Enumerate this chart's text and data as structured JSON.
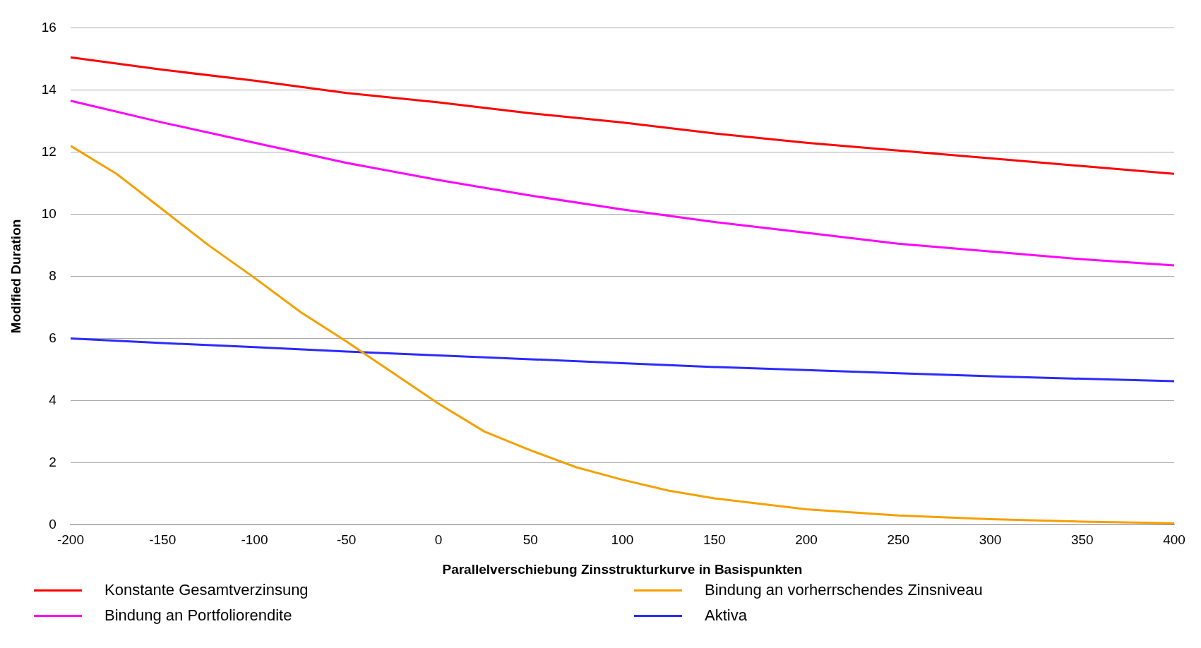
{
  "chart_data": {
    "type": "line",
    "xlabel": "Parallelverschiebung Zinsstrukturkurve in Basispunkten",
    "ylabel": "Modified Duration",
    "xlim": [
      -200,
      400
    ],
    "xticks": [
      -200,
      -150,
      -100,
      -50,
      0,
      50,
      100,
      150,
      200,
      250,
      300,
      350,
      400
    ],
    "ylim": [
      0,
      16
    ],
    "yticks": [
      0,
      2,
      4,
      6,
      8,
      10,
      12,
      14,
      16
    ],
    "grid": "y",
    "legend": "bottom",
    "marker": "none",
    "line_style": "solid",
    "series": [
      {
        "name": "Konstante Gesamtverzinsung",
        "color": "#ff0000",
        "x": [
          -200,
          -150,
          -100,
          -50,
          0,
          50,
          100,
          150,
          200,
          250,
          300,
          350,
          400
        ],
        "values": [
          15.05,
          14.65,
          14.3,
          13.9,
          13.6,
          13.25,
          12.95,
          12.6,
          12.3,
          12.05,
          11.8,
          11.55,
          11.3
        ]
      },
      {
        "name": "Bindung an Portfoliorendite",
        "color": "#ff00ff",
        "x": [
          -200,
          -150,
          -100,
          -50,
          0,
          50,
          100,
          150,
          200,
          250,
          300,
          350,
          400
        ],
        "values": [
          13.65,
          12.95,
          12.3,
          11.65,
          11.1,
          10.6,
          10.15,
          9.75,
          9.4,
          9.05,
          8.8,
          8.55,
          8.35
        ]
      },
      {
        "name": "Bindung an vorherrschendes Zinsniveau",
        "color": "#f5a000",
        "x": [
          -200,
          -175,
          -150,
          -125,
          -100,
          -75,
          -50,
          -25,
          0,
          25,
          50,
          75,
          100,
          125,
          150,
          200,
          250,
          300,
          350,
          400
        ],
        "values": [
          12.2,
          11.3,
          10.15,
          9.0,
          7.95,
          6.85,
          5.9,
          4.9,
          3.9,
          3.0,
          2.4,
          1.85,
          1.45,
          1.1,
          0.85,
          0.5,
          0.3,
          0.18,
          0.1,
          0.05
        ]
      },
      {
        "name": "Aktiva",
        "color": "#2a2aff",
        "x": [
          -200,
          -150,
          -100,
          -50,
          0,
          50,
          100,
          150,
          200,
          250,
          300,
          350,
          400
        ],
        "values": [
          6.0,
          5.85,
          5.72,
          5.58,
          5.45,
          5.33,
          5.2,
          5.08,
          4.98,
          4.88,
          4.78,
          4.7,
          4.62
        ]
      }
    ]
  }
}
